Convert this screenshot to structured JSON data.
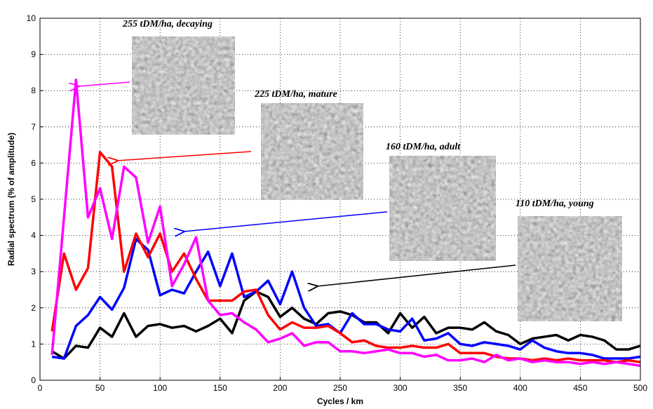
{
  "chart_data": {
    "type": "line",
    "xlabel": "Cycles / km",
    "ylabel": "Radial spectrum (% of amplitude)",
    "x": [
      10,
      20,
      30,
      40,
      50,
      60,
      70,
      80,
      90,
      100,
      110,
      120,
      130,
      140,
      150,
      160,
      170,
      180,
      190,
      200,
      210,
      220,
      230,
      240,
      250,
      260,
      270,
      280,
      290,
      300,
      310,
      320,
      330,
      340,
      350,
      360,
      370,
      380,
      390,
      400,
      410,
      420,
      430,
      440,
      450,
      460,
      470,
      480,
      490,
      500
    ],
    "series": [
      {
        "name": "255 tDM/ha, decaying",
        "color": "#ff00ff",
        "values": [
          0.7,
          4.5,
          8.3,
          4.5,
          5.3,
          3.9,
          5.9,
          5.6,
          3.8,
          4.8,
          2.6,
          3.2,
          3.95,
          2.2,
          1.8,
          1.85,
          1.6,
          1.4,
          1.05,
          1.15,
          1.3,
          0.95,
          1.05,
          1.05,
          0.8,
          0.8,
          0.75,
          0.8,
          0.85,
          0.75,
          0.75,
          0.65,
          0.7,
          0.55,
          0.55,
          0.6,
          0.5,
          0.7,
          0.55,
          0.6,
          0.5,
          0.55,
          0.5,
          0.5,
          0.45,
          0.5,
          0.45,
          0.5,
          0.45,
          0.4
        ]
      },
      {
        "name": "225 tDM/ha, mature",
        "color": "#ff0000",
        "values": [
          1.35,
          3.5,
          2.5,
          3.1,
          6.3,
          5.9,
          3.0,
          4.05,
          3.4,
          4.05,
          3.0,
          3.5,
          2.8,
          2.2,
          2.2,
          2.2,
          2.45,
          2.5,
          1.8,
          1.4,
          1.6,
          1.45,
          1.45,
          1.5,
          1.3,
          1.05,
          1.1,
          0.95,
          0.9,
          0.9,
          0.95,
          0.9,
          0.9,
          1.0,
          0.75,
          0.75,
          0.75,
          0.65,
          0.6,
          0.6,
          0.55,
          0.6,
          0.55,
          0.6,
          0.55,
          0.55,
          0.55,
          0.5,
          0.55,
          0.5
        ]
      },
      {
        "name": "160 tDM/ha, adult",
        "color": "#0000ff",
        "values": [
          0.65,
          0.6,
          1.5,
          1.8,
          2.3,
          1.95,
          2.55,
          3.9,
          3.6,
          2.35,
          2.5,
          2.4,
          3.0,
          3.55,
          2.6,
          3.5,
          2.3,
          2.45,
          2.75,
          2.1,
          3.0,
          2.0,
          1.5,
          1.55,
          1.3,
          1.85,
          1.55,
          1.55,
          1.4,
          1.35,
          1.7,
          1.1,
          1.15,
          1.3,
          1.0,
          0.95,
          1.05,
          1.0,
          0.95,
          0.85,
          1.1,
          0.9,
          0.8,
          0.75,
          0.75,
          0.7,
          0.6,
          0.6,
          0.6,
          0.65
        ]
      },
      {
        "name": "110 tDM/ha, young",
        "color": "#000000",
        "values": [
          0.8,
          0.6,
          0.95,
          0.9,
          1.45,
          1.2,
          1.85,
          1.2,
          1.5,
          1.55,
          1.45,
          1.5,
          1.35,
          1.5,
          1.7,
          1.3,
          2.2,
          2.45,
          2.3,
          1.75,
          2.0,
          1.7,
          1.55,
          1.85,
          1.9,
          1.8,
          1.6,
          1.6,
          1.3,
          1.85,
          1.45,
          1.75,
          1.3,
          1.45,
          1.45,
          1.4,
          1.6,
          1.35,
          1.25,
          1.0,
          1.15,
          1.2,
          1.25,
          1.1,
          1.25,
          1.2,
          1.1,
          0.85,
          0.85,
          0.95
        ]
      }
    ],
    "xlim": [
      0,
      500
    ],
    "xticks": [
      0,
      50,
      100,
      150,
      200,
      250,
      300,
      350,
      400,
      450,
      500
    ],
    "ylim": [
      0,
      10
    ],
    "yticks": [
      0,
      1,
      2,
      3,
      4,
      5,
      6,
      7,
      8,
      9,
      10
    ],
    "grid": true
  }
}
